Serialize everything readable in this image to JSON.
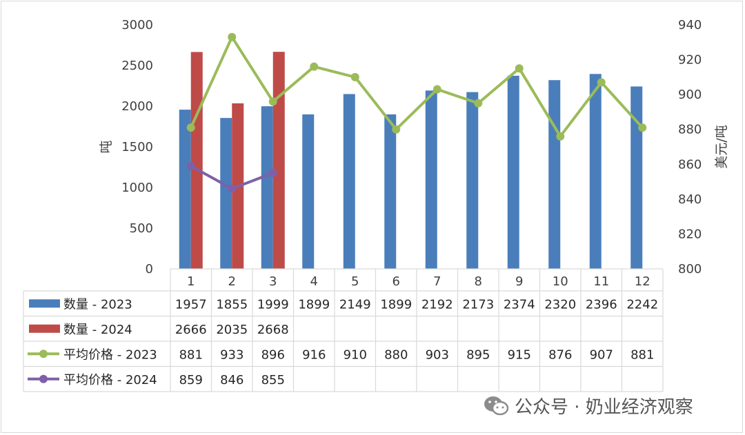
{
  "chart_data": {
    "type": "bar",
    "categories": [
      "1",
      "2",
      "3",
      "4",
      "5",
      "6",
      "7",
      "8",
      "9",
      "10",
      "11",
      "12"
    ],
    "y_left": {
      "label": "吨",
      "range": [
        0,
        3000
      ],
      "ticks": [
        0,
        500,
        1000,
        1500,
        2000,
        2500,
        3000
      ]
    },
    "y_right": {
      "label": "美元/吨",
      "range": [
        800,
        940
      ],
      "ticks": [
        800,
        820,
        840,
        860,
        880,
        900,
        920,
        940
      ]
    },
    "grid": false,
    "legend": "data-table",
    "series": [
      {
        "name": "数量 - 2023",
        "type": "bar",
        "axis": "left",
        "color": "#4a7ebb",
        "values": [
          1957,
          1855,
          1999,
          1899,
          2149,
          1899,
          2192,
          2173,
          2374,
          2320,
          2396,
          2242
        ]
      },
      {
        "name": "数量 - 2024",
        "type": "bar",
        "axis": "left",
        "color": "#be4b48",
        "values": [
          2666,
          2035,
          2668,
          null,
          null,
          null,
          null,
          null,
          null,
          null,
          null,
          null
        ]
      },
      {
        "name": "平均价格 - 2023",
        "type": "line",
        "axis": "right",
        "color": "#9bbb59",
        "values": [
          881,
          933,
          896,
          916,
          910,
          880,
          903,
          895,
          915,
          876,
          907,
          881
        ]
      },
      {
        "name": "平均价格 - 2024",
        "type": "line",
        "axis": "right",
        "color": "#7f60a8",
        "values": [
          859,
          846,
          855,
          null,
          null,
          null,
          null,
          null,
          null,
          null,
          null,
          null
        ]
      }
    ]
  },
  "watermark": {
    "text": "公众号 · 奶业经济观察",
    "icon": "wechat-icon"
  }
}
